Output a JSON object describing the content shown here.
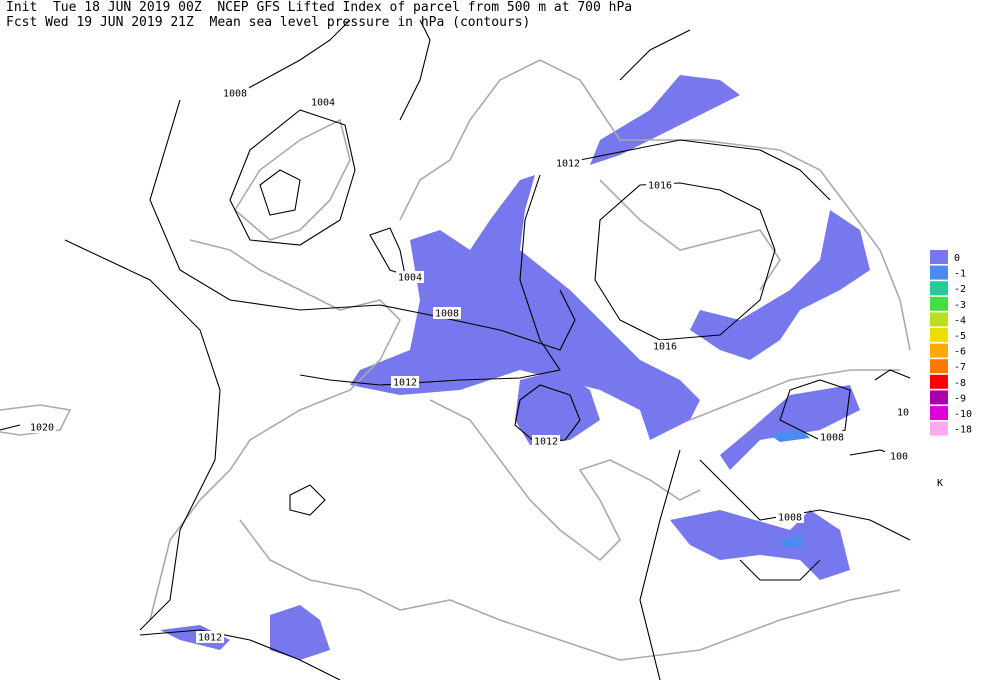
{
  "header": {
    "line1": "Init  Tue 18 JUN 2019 00Z  NCEP GFS Lifted Index of parcel from 500 m at 700 hPa",
    "line2": "Fcst Wed 19 JUN 2019 21Z  Mean sea level pressure in hPa (contours)"
  },
  "legend": {
    "unit": "K",
    "entries": [
      {
        "label": "0",
        "color": "#7777ee"
      },
      {
        "label": "-1",
        "color": "#4a8cf0"
      },
      {
        "label": "-2",
        "color": "#22cc99"
      },
      {
        "label": "-3",
        "color": "#44dd44"
      },
      {
        "label": "-4",
        "color": "#bbdd22"
      },
      {
        "label": "-5",
        "color": "#eedd00"
      },
      {
        "label": "-6",
        "color": "#ffaa00"
      },
      {
        "label": "-7",
        "color": "#ff7700"
      },
      {
        "label": "-8",
        "color": "#ff0000"
      },
      {
        "label": "-9",
        "color": "#aa00aa"
      },
      {
        "label": "-10",
        "color": "#dd00dd"
      },
      {
        "label": "-18",
        "color": "#ffaaee"
      }
    ]
  },
  "contour_labels": [
    "1008",
    "1004",
    "1012",
    "1016",
    "1004",
    "1008",
    "1016",
    "1012",
    "1020",
    "1012",
    "1008",
    "1008",
    "1012",
    "10",
    "100"
  ]
}
